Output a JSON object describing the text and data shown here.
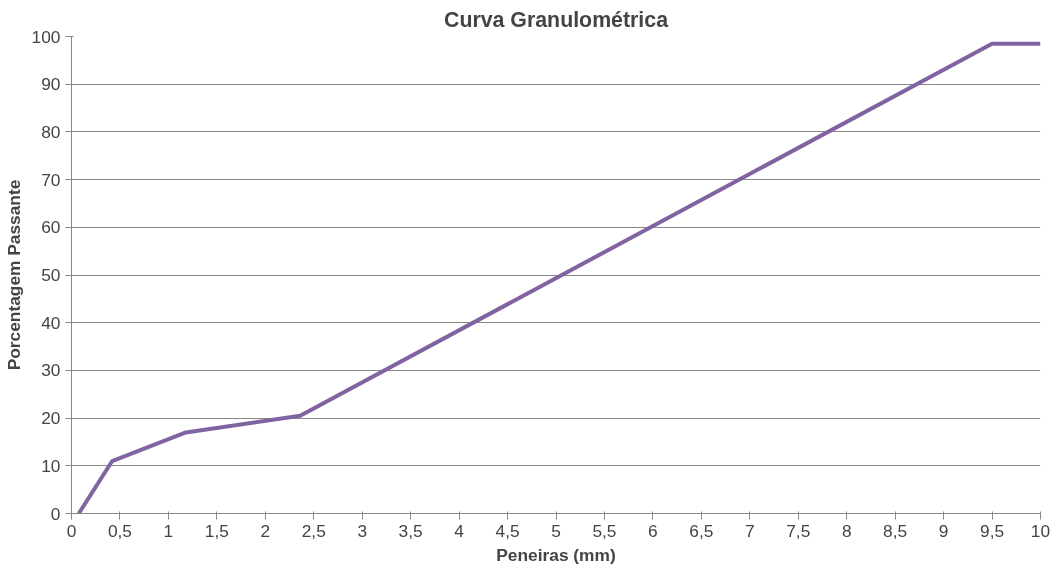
{
  "chart_data": {
    "type": "line",
    "title": "Curva Granulométrica",
    "xlabel": "Peneiras (mm)",
    "ylabel": "Porcentagem Passante",
    "x": [
      0.075,
      0.42,
      1.18,
      2.36,
      9.5,
      10
    ],
    "series": [
      {
        "color": "#8064a2",
        "values": [
          0,
          11,
          17,
          20.5,
          98.5,
          98.5
        ]
      }
    ],
    "xlim": [
      0,
      10
    ],
    "ylim": [
      0,
      100
    ],
    "xticks": [
      0,
      {
        "value": 0.5,
        "label": "0,5"
      },
      1,
      {
        "value": 1.5,
        "label": "1,5"
      },
      2,
      {
        "value": 2.5,
        "label": "2,5"
      },
      3,
      {
        "value": 3.5,
        "label": "3,5"
      },
      4,
      {
        "value": 4.5,
        "label": "4,5"
      },
      5,
      {
        "value": 5.5,
        "label": "5,5"
      },
      6,
      {
        "value": 6.5,
        "label": "6,5"
      },
      7,
      {
        "value": 7.5,
        "label": "7,5"
      },
      8,
      {
        "value": 8.5,
        "label": "8,5"
      },
      9,
      {
        "value": 9.5,
        "label": "9,5"
      },
      10
    ],
    "yticks": [
      0,
      10,
      20,
      30,
      40,
      50,
      60,
      70,
      80,
      90,
      100
    ],
    "grid": "y",
    "marker": "none",
    "line_style": "solid"
  }
}
